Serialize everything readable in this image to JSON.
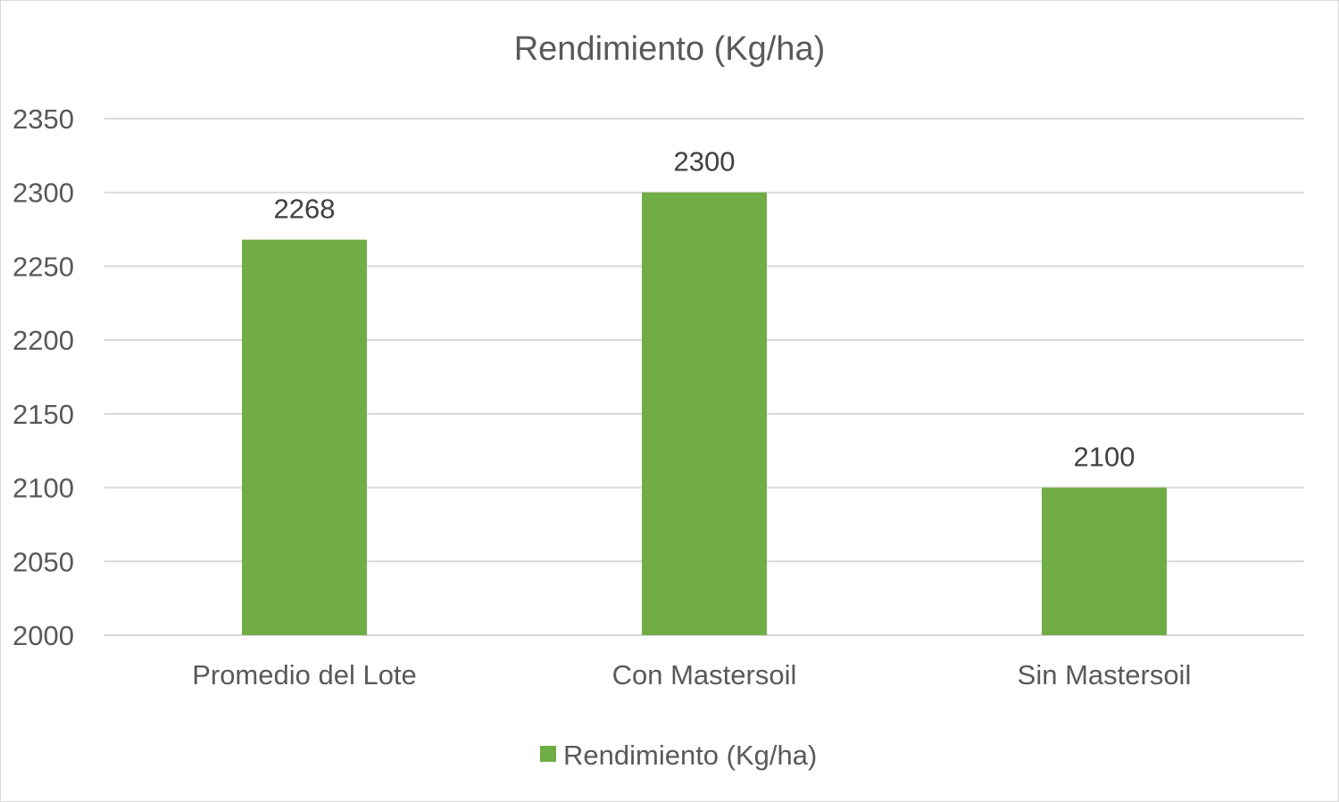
{
  "chart_data": {
    "type": "bar",
    "title": "Rendimiento (Kg/ha)",
    "categories": [
      "Promedio del Lote",
      "Con Mastersoil",
      "Sin Mastersoil"
    ],
    "series": [
      {
        "name": "Rendimiento (Kg/ha)",
        "values": [
          2268,
          2300,
          2100
        ],
        "color": "#70ad47"
      }
    ],
    "xlabel": "",
    "ylabel": "",
    "ylim": [
      2000,
      2350
    ],
    "yticks": [
      2000,
      2050,
      2100,
      2150,
      2200,
      2250,
      2300,
      2350
    ],
    "grid": true,
    "data_labels": true,
    "legend_position": "bottom",
    "colors": {
      "gridline": "#d9d9d9",
      "text": "#595959",
      "data_label": "#404040"
    }
  }
}
